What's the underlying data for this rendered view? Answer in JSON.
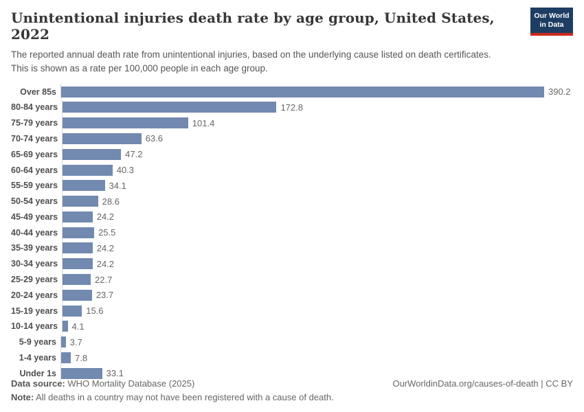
{
  "header": {
    "title": "Unintentional injuries death rate by age group, United States, 2022",
    "subtitle": "The reported annual death rate from unintentional injuries, based on the underlying cause listed on death certificates. This is shown as a rate per 100,000 people in each age group.",
    "logo": {
      "line1": "Our World",
      "line2": "in Data"
    }
  },
  "chart_data": {
    "type": "bar",
    "orientation": "horizontal",
    "title": "Unintentional injuries death rate by age group, United States, 2022",
    "xlabel": "",
    "ylabel": "",
    "xlim": [
      0,
      400
    ],
    "grid": false,
    "legend": false,
    "unit": "deaths per 100,000 people",
    "categories": [
      "Over 85s",
      "80-84 years",
      "75-79 years",
      "70-74 years",
      "65-69 years",
      "60-64 years",
      "55-59 years",
      "50-54 years",
      "45-49 years",
      "40-44 years",
      "35-39 years",
      "30-34 years",
      "25-29 years",
      "20-24 years",
      "15-19 years",
      "10-14 years",
      "5-9 years",
      "1-4 years",
      "Under 1s"
    ],
    "values": [
      390.2,
      172.8,
      101.4,
      63.6,
      47.2,
      40.3,
      34.1,
      28.6,
      24.2,
      25.5,
      24.2,
      24.2,
      22.7,
      23.7,
      15.6,
      4.1,
      3.7,
      7.8,
      33.1
    ]
  },
  "colors": {
    "bar": "#7289b0",
    "logo_navy": "#1d3d63",
    "logo_red": "#cc2a1d",
    "axis_line": "#d9d9d9"
  },
  "footer": {
    "data_source_label": "Data source:",
    "data_source_value": " WHO Mortality Database (2025)",
    "note_label": "Note:",
    "note_value": " All deaths in a country may not have been registered with a cause of death.",
    "link": "OurWorldinData.org/causes-of-death | CC BY"
  }
}
